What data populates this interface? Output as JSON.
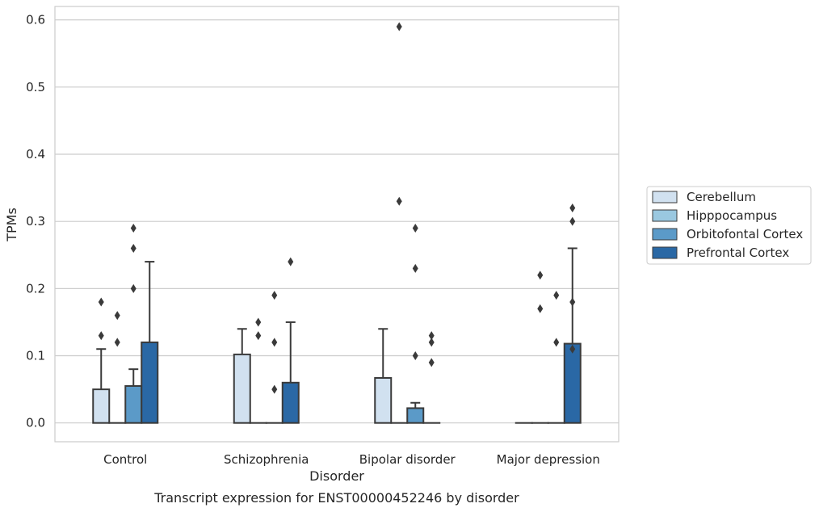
{
  "caption": "Transcript expression for ENST00000452246 by disorder",
  "chart_data": {
    "type": "bar",
    "title": "",
    "xlabel": "Disorder",
    "ylabel": "TPMs",
    "ylim": [
      -0.028,
      0.62
    ],
    "yticks": [
      "0.0",
      "0.1",
      "0.2",
      "0.3",
      "0.4",
      "0.5",
      "0.6"
    ],
    "grid": true,
    "legend_position": "right",
    "categories": [
      "Control",
      "Schizophrenia",
      "Bipolar disorder",
      "Major depression"
    ],
    "series": [
      {
        "name": "Cerebellum",
        "color": "#d1e1f0",
        "values": [
          0.05,
          0.102,
          0.067,
          0.0
        ],
        "error_upper": [
          0.11,
          0.14,
          0.14,
          null
        ],
        "outliers": [
          [
            0.13,
            0.18
          ],
          [],
          [],
          []
        ]
      },
      {
        "name": "Hipppocampus",
        "color": "#9ac8e0",
        "values": [
          0.0,
          0.0,
          0.0,
          0.0
        ],
        "error_upper": [
          null,
          null,
          null,
          null
        ],
        "outliers": [
          [
            0.12,
            0.16
          ],
          [
            0.13,
            0.15
          ],
          [
            0.33,
            0.59
          ],
          [
            0.17,
            0.22
          ]
        ]
      },
      {
        "name": "Orbitofontal Cortex",
        "color": "#5b9ac8",
        "values": [
          0.055,
          0.0,
          0.022,
          0.0
        ],
        "error_upper": [
          0.08,
          null,
          0.03,
          null
        ],
        "outliers": [
          [
            0.2,
            0.26,
            0.29
          ],
          [
            0.05,
            0.12,
            0.19
          ],
          [
            0.1,
            0.23,
            0.29
          ],
          [
            0.12,
            0.19
          ]
        ]
      },
      {
        "name": "Prefrontal Cortex",
        "color": "#2a68a5",
        "values": [
          0.12,
          0.06,
          0.0,
          0.118
        ],
        "error_upper": [
          0.24,
          0.15,
          null,
          0.26
        ],
        "outliers": [
          [],
          [
            0.24
          ],
          [
            0.09,
            0.12,
            0.13
          ],
          [
            0.11,
            0.18,
            0.3,
            0.32
          ]
        ]
      }
    ]
  }
}
